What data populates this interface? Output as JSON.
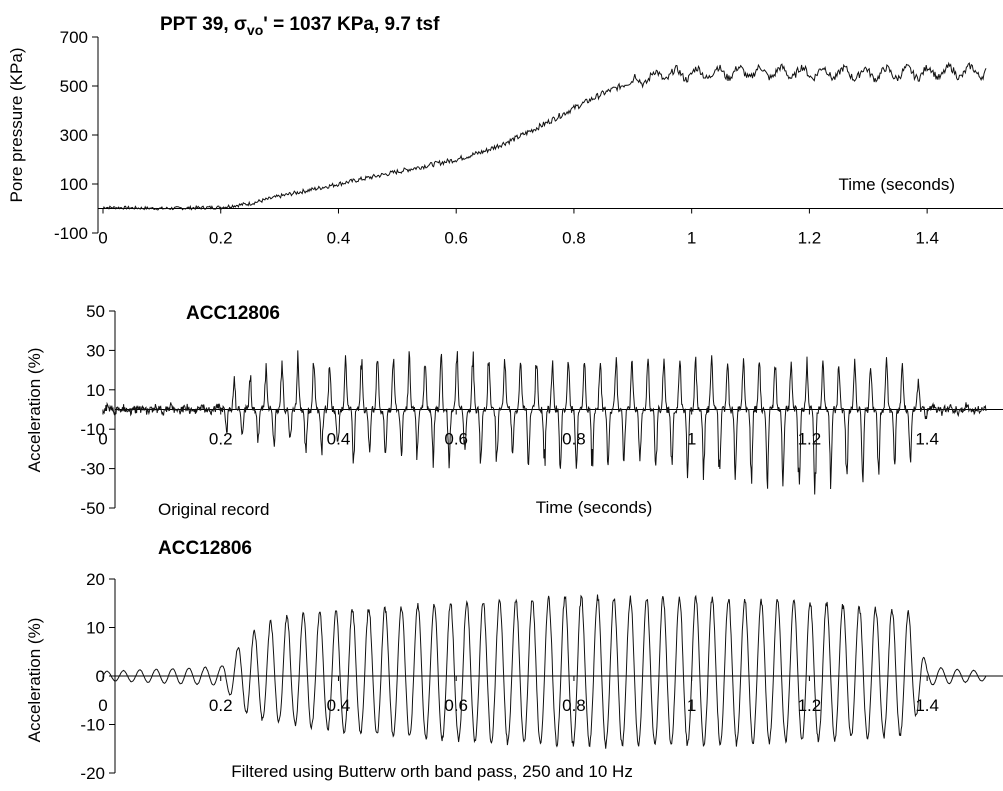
{
  "chart_data": [
    {
      "type": "line",
      "title": "PPT 39,  σvo' = 1037 KPa, 9.7 tsf",
      "title_parts": {
        "prefix": "PPT 39,  ",
        "sigma": "σ",
        "sub": "vo",
        "rest": "' = 1037 KPa, 9.7 tsf"
      },
      "xlabel": "Time (seconds)",
      "ylabel": "Pore pressure (KPa)",
      "xlim": [
        0,
        1.5
      ],
      "ylim": [
        -100,
        700
      ],
      "xticks": [
        0,
        0.2,
        0.4,
        0.6,
        0.8,
        1,
        1.2,
        1.4
      ],
      "xtick_labels": [
        "0",
        "0.2",
        "0.4",
        "0.6",
        "0.8",
        "1",
        "1.2",
        "1.4"
      ],
      "yticks": [
        -100,
        100,
        300,
        500,
        700
      ],
      "ytick_labels": [
        "-100",
        "100",
        "300",
        "500",
        "700"
      ],
      "grid": false,
      "annotations": [],
      "series": [
        {
          "values_description_free": true,
          "x": [
            0,
            0.1,
            0.2,
            0.25,
            0.3,
            0.35,
            0.4,
            0.45,
            0.5,
            0.55,
            0.6,
            0.65,
            0.7,
            0.75,
            0.8,
            0.85,
            0.9,
            0.95,
            1.0,
            1.05,
            1.1,
            1.2,
            1.3,
            1.4,
            1.5
          ],
          "y": [
            5,
            0,
            5,
            20,
            50,
            75,
            100,
            125,
            150,
            175,
            200,
            235,
            285,
            345,
            410,
            470,
            520,
            545,
            550,
            555,
            555,
            555,
            550,
            555,
            560
          ]
        }
      ]
    },
    {
      "type": "line",
      "title": "ACC12806",
      "xlabel": "Time (seconds)",
      "ylabel": "Acceleration (%)",
      "xlim": [
        0,
        1.5
      ],
      "ylim": [
        -50,
        50
      ],
      "xticks": [
        0,
        0.2,
        0.4,
        0.6,
        0.8,
        1,
        1.2,
        1.4
      ],
      "xtick_labels": [
        "0",
        "0.2",
        "0.4",
        "0.6",
        "0.8",
        "1",
        "1.2",
        "1.4"
      ],
      "yticks": [
        -50,
        -30,
        -10,
        10,
        30,
        50
      ],
      "ytick_labels": [
        "-50",
        "-30",
        "-10",
        "10",
        "30",
        "50"
      ],
      "grid": false,
      "annotations": [
        "Original record"
      ],
      "series": [
        {
          "x": [
            0,
            0.2,
            0.21,
            0.3,
            0.4,
            0.6,
            0.8,
            1.0,
            1.2,
            1.37,
            1.4,
            1.5
          ],
          "y_envelope_pos": [
            1,
            2,
            12,
            25,
            27,
            30,
            27,
            27,
            25,
            25,
            3,
            1
          ],
          "y_envelope_neg": [
            -1,
            -2,
            -15,
            -20,
            -25,
            -28,
            -30,
            -33,
            -45,
            -30,
            -3,
            -1
          ]
        }
      ]
    },
    {
      "type": "line",
      "title": "ACC12806",
      "xlabel": "",
      "ylabel": "Acceleration (%)",
      "xlim": [
        0,
        1.5
      ],
      "ylim": [
        -20,
        20
      ],
      "xticks": [
        0,
        0.2,
        0.4,
        0.6,
        0.8,
        1,
        1.2,
        1.4
      ],
      "xtick_labels": [
        "0",
        "0.2",
        "0.4",
        "0.6",
        "0.8",
        "1",
        "1.2",
        "1.4"
      ],
      "yticks": [
        -20,
        -10,
        0,
        10,
        20
      ],
      "ytick_labels": [
        "-20",
        "-10",
        "0",
        "10",
        "20"
      ],
      "grid": false,
      "annotations": [
        "Filtered using Butterw orth band pass, 250 and 10 Hz"
      ],
      "series": [
        {
          "x": [
            0,
            0.2,
            0.25,
            0.3,
            0.4,
            0.6,
            0.8,
            1.0,
            1.2,
            1.37,
            1.4,
            1.5
          ],
          "y_envelope_pos": [
            1,
            2,
            9,
            13,
            14,
            16,
            17,
            17,
            16,
            14,
            2,
            1
          ],
          "y_envelope_neg": [
            -1,
            -2,
            -9,
            -10,
            -12,
            -14,
            -15,
            -15,
            -14,
            -13,
            -2,
            -1
          ]
        }
      ]
    }
  ]
}
